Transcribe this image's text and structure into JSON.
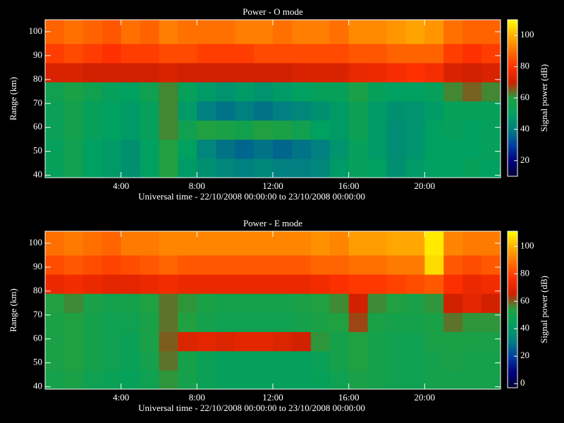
{
  "chart_data": [
    {
      "type": "heatmap",
      "title": "Power - O mode",
      "xlabel": "Universal time - 22/10/2008 00:00:00 to 23/10/2008 00:00:00",
      "ylabel": "Range (km)",
      "colorbar_label": "Signal power (dB)",
      "xbins": [
        0,
        1,
        2,
        3,
        4,
        5,
        6,
        7,
        8,
        9,
        10,
        11,
        12,
        13,
        14,
        15,
        16,
        17,
        18,
        19,
        20,
        21,
        22,
        23,
        24
      ],
      "ybins": [
        39,
        47,
        55,
        63,
        71,
        79,
        87,
        95,
        105
      ],
      "z": [
        [
          52,
          55,
          50,
          48,
          45,
          50,
          60,
          48,
          45,
          42,
          40,
          42,
          40,
          40,
          42,
          48,
          52,
          50,
          45,
          48,
          50,
          50,
          52,
          50
        ],
        [
          52,
          55,
          50,
          48,
          45,
          50,
          60,
          50,
          42,
          38,
          36,
          38,
          36,
          38,
          40,
          46,
          52,
          48,
          44,
          46,
          50,
          50,
          50,
          52
        ],
        [
          53,
          56,
          52,
          50,
          48,
          52,
          62,
          55,
          60,
          58,
          56,
          60,
          58,
          55,
          50,
          48,
          54,
          48,
          44,
          46,
          50,
          52,
          50,
          52
        ],
        [
          53,
          56,
          52,
          50,
          48,
          52,
          62,
          48,
          40,
          38,
          40,
          38,
          40,
          42,
          45,
          48,
          54,
          48,
          45,
          46,
          48,
          52,
          52,
          52
        ],
        [
          55,
          58,
          55,
          52,
          50,
          55,
          62,
          52,
          48,
          46,
          48,
          46,
          48,
          50,
          52,
          52,
          58,
          52,
          50,
          50,
          52,
          62,
          65,
          62
        ],
        [
          72,
          72,
          70,
          70,
          70,
          70,
          72,
          70,
          70,
          70,
          70,
          70,
          70,
          72,
          72,
          72,
          75,
          76,
          78,
          80,
          78,
          72,
          70,
          72
        ],
        [
          82,
          84,
          82,
          80,
          82,
          82,
          84,
          84,
          82,
          82,
          82,
          84,
          84,
          84,
          84,
          84,
          86,
          86,
          88,
          88,
          88,
          82,
          80,
          82
        ],
        [
          88,
          90,
          88,
          86,
          90,
          88,
          92,
          90,
          90,
          90,
          92,
          92,
          90,
          92,
          92,
          90,
          94,
          94,
          96,
          98,
          96,
          90,
          88,
          88
        ]
      ],
      "xlim": [
        0,
        24
      ],
      "xticks": [
        {
          "value": 4,
          "label": "4:00"
        },
        {
          "value": 8,
          "label": "8:00"
        },
        {
          "value": 12,
          "label": "12:00"
        },
        {
          "value": 16,
          "label": "16:00"
        },
        {
          "value": 20,
          "label": "20:00"
        }
      ],
      "ylim": [
        39,
        105
      ],
      "yticks": [
        40,
        50,
        60,
        70,
        80,
        90,
        100
      ],
      "zlim": [
        10,
        110
      ],
      "zticks": [
        20,
        40,
        60,
        80,
        100
      ],
      "colormap": [
        "#000030",
        "#000080",
        "#0040a0",
        "#008080",
        "#00a060",
        "#20a040",
        "#d02000",
        "#ff3000",
        "#ff7000",
        "#ffb000",
        "#ffff00"
      ]
    },
    {
      "type": "heatmap",
      "title": "Power - E mode",
      "xlabel": "Universal time - 22/10/2008 00:00:00 to 23/10/2008 00:00:00",
      "ylabel": "Range (km)",
      "colorbar_label": "Signal power (dB)",
      "xbins": [
        0,
        1,
        2,
        3,
        4,
        5,
        6,
        7,
        8,
        9,
        10,
        11,
        12,
        13,
        14,
        15,
        16,
        17,
        18,
        19,
        20,
        21,
        22,
        23,
        24
      ],
      "ybins": [
        39,
        47,
        55,
        63,
        71,
        79,
        87,
        95,
        105
      ],
      "z": [
        [
          50,
          52,
          48,
          46,
          45,
          48,
          55,
          50,
          46,
          44,
          44,
          44,
          44,
          44,
          45,
          48,
          52,
          50,
          48,
          48,
          50,
          50,
          50,
          50
        ],
        [
          52,
          54,
          50,
          48,
          46,
          50,
          58,
          50,
          46,
          44,
          44,
          44,
          44,
          44,
          46,
          50,
          54,
          50,
          48,
          48,
          50,
          52,
          50,
          50
        ],
        [
          52,
          54,
          50,
          48,
          46,
          52,
          60,
          68,
          70,
          68,
          70,
          70,
          68,
          66,
          55,
          50,
          54,
          50,
          48,
          48,
          52,
          52,
          52,
          52
        ],
        [
          52,
          54,
          50,
          48,
          48,
          52,
          58,
          54,
          50,
          48,
          48,
          48,
          48,
          50,
          52,
          54,
          62,
          52,
          50,
          50,
          52,
          58,
          55,
          55
        ],
        [
          54,
          56,
          52,
          50,
          50,
          54,
          58,
          55,
          52,
          50,
          50,
          50,
          50,
          52,
          54,
          56,
          66,
          56,
          54,
          52,
          55,
          66,
          70,
          66
        ],
        [
          72,
          74,
          72,
          70,
          70,
          72,
          74,
          72,
          72,
          72,
          72,
          72,
          72,
          72,
          74,
          76,
          78,
          78,
          80,
          82,
          84,
          76,
          72,
          74
        ],
        [
          82,
          84,
          82,
          80,
          82,
          84,
          86,
          84,
          84,
          84,
          84,
          84,
          84,
          84,
          86,
          86,
          88,
          88,
          90,
          90,
          106,
          84,
          82,
          84
        ],
        [
          88,
          90,
          88,
          86,
          90,
          90,
          92,
          92,
          92,
          92,
          92,
          92,
          92,
          92,
          94,
          92,
          96,
          96,
          98,
          98,
          108,
          92,
          90,
          90
        ]
      ],
      "xlim": [
        0,
        24
      ],
      "xticks": [
        {
          "value": 4,
          "label": "4:00"
        },
        {
          "value": 8,
          "label": "8:00"
        },
        {
          "value": 12,
          "label": "12:00"
        },
        {
          "value": 16,
          "label": "16:00"
        },
        {
          "value": 20,
          "label": "20:00"
        }
      ],
      "ylim": [
        39,
        105
      ],
      "yticks": [
        40,
        50,
        60,
        70,
        80,
        90,
        100
      ],
      "zlim": [
        -3,
        111
      ],
      "zticks": [
        0,
        20,
        40,
        60,
        80,
        100
      ],
      "colormap": [
        "#000030",
        "#000080",
        "#0040a0",
        "#008080",
        "#00a060",
        "#20a040",
        "#d02000",
        "#ff3000",
        "#ff7000",
        "#ffb000",
        "#ffff00"
      ]
    }
  ]
}
